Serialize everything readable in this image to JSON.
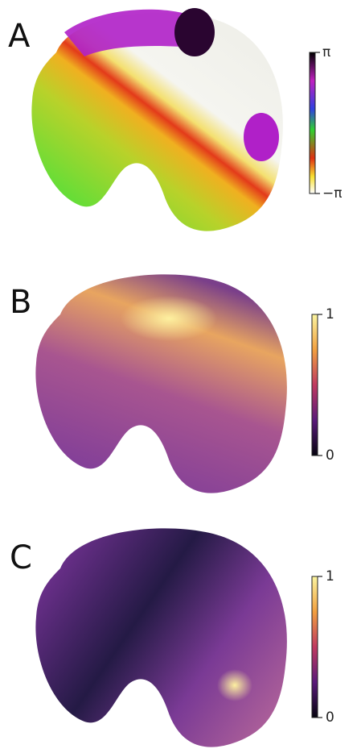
{
  "panels": [
    {
      "label": "A",
      "colorbar": {
        "top": "π",
        "bottom": "−π"
      }
    },
    {
      "label": "B",
      "colorbar": {
        "top": "1",
        "bottom": "0"
      }
    },
    {
      "label": "C",
      "colorbar": {
        "top": "1",
        "bottom": "0"
      }
    }
  ]
}
